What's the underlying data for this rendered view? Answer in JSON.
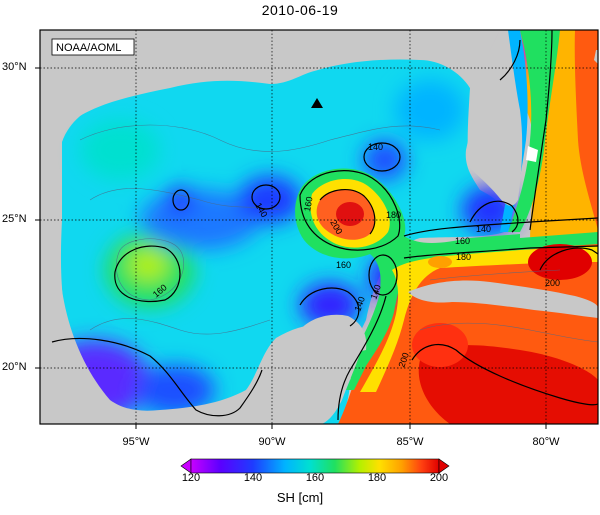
{
  "title": "2010-06-19",
  "credit": "NOAA/AOML",
  "lat_labels": [
    "30°N",
    "25°N",
    "20°N"
  ],
  "lon_labels": [
    "95°W",
    "90°W",
    "85°W",
    "80°W"
  ],
  "contour_labels": [
    "140",
    "140",
    "140",
    "140",
    "140",
    "160",
    "160",
    "160",
    "160",
    "180",
    "180",
    "200",
    "200",
    "200"
  ],
  "colorbar": {
    "label": "SH [cm]",
    "ticks": [
      "120",
      "140",
      "160",
      "180",
      "200"
    ],
    "colors": [
      "#c800ff",
      "#5a00ff",
      "#1e3cff",
      "#00b4ff",
      "#00e0d0",
      "#20e060",
      "#b4f000",
      "#ffe000",
      "#ffa000",
      "#ff4010",
      "#e00000"
    ]
  },
  "marker": "triangle-station-icon",
  "colors": {
    "land": "#c8c8c8",
    "frame": "#000000"
  }
}
